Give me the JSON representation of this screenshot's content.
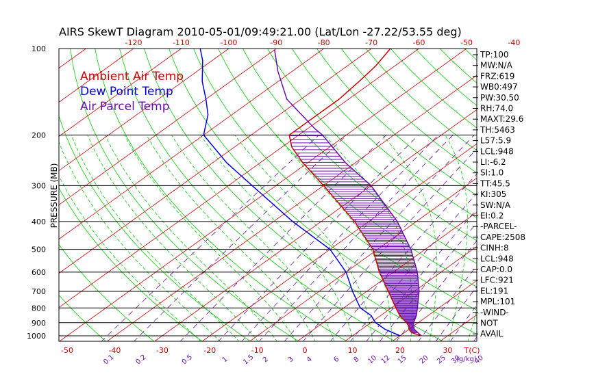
{
  "colors": {
    "temp": "#cc0000",
    "dew": "#0000dd",
    "parcel": "#6a0dad",
    "isotherm": "#cc0000",
    "dry_adiabat": "#00cc00",
    "moist_adiabat": "#00cc00",
    "mixing_ratio": "#6a0dad",
    "isobar": "#000000",
    "hatch": "#6a0dad"
  },
  "chart_data": {
    "type": "line",
    "title": "AIRS SkewT Diagram 2010-05-01/09:49:21.00 (Lat/Lon -27.22/53.55 deg)",
    "ylabel": "PRESSURE (MB)",
    "xlabel": "T(C)",
    "mixing_ratio_unit": "(g/kg)",
    "y_scale": "log",
    "ylim": [
      1050,
      100
    ],
    "xlim": [
      -55,
      45
    ],
    "pressure_ticks": [
      100,
      200,
      300,
      400,
      500,
      600,
      700,
      800,
      900,
      1000
    ],
    "top_temp_ticks": [
      -120,
      -110,
      -100,
      -90,
      -80,
      -70,
      -60,
      -50,
      -40
    ],
    "bottom_temp_ticks": [
      -50,
      -40,
      -30,
      -20,
      -10,
      0,
      10,
      20,
      30
    ],
    "mixing_ratio_ticks": [
      0.1,
      0.2,
      0.5,
      1,
      1.5,
      2,
      3,
      4,
      6,
      8,
      10,
      12,
      15,
      20,
      25,
      30,
      40
    ],
    "legend": [
      {
        "name": "Ambient Air Temp",
        "color": "#cc0000"
      },
      {
        "name": "Dew Point Temp",
        "color": "#0000dd"
      },
      {
        "name": "Air Parcel Temp",
        "color": "#6a0dad"
      }
    ],
    "series": [
      {
        "name": "Ambient Air Temp",
        "points": [
          [
            1000,
            24.5
          ],
          [
            975,
            21.5
          ],
          [
            950,
            20.0
          ],
          [
            925,
            19.0
          ],
          [
            900,
            17.5
          ],
          [
            850,
            14.0
          ],
          [
            800,
            11.0
          ],
          [
            700,
            4.5
          ],
          [
            600,
            -3.0
          ],
          [
            500,
            -11.0
          ],
          [
            400,
            -23.0
          ],
          [
            300,
            -40.0
          ],
          [
            250,
            -51.0
          ],
          [
            220,
            -58.0
          ],
          [
            200,
            -62.0
          ],
          [
            170,
            -62.0
          ],
          [
            150,
            -62.0
          ],
          [
            130,
            -63.0
          ],
          [
            115,
            -64.0
          ],
          [
            100,
            -66.0
          ]
        ]
      },
      {
        "name": "Dew Point Temp",
        "points": [
          [
            1000,
            20.0
          ],
          [
            950,
            15.0
          ],
          [
            900,
            11.0
          ],
          [
            850,
            8.0
          ],
          [
            800,
            3.5
          ],
          [
            700,
            -3.0
          ],
          [
            600,
            -10.0
          ],
          [
            500,
            -20.0
          ],
          [
            400,
            -36.0
          ],
          [
            300,
            -55.0
          ],
          [
            250,
            -67.0
          ],
          [
            200,
            -80.0
          ],
          [
            170,
            -85.0
          ],
          [
            150,
            -90.0
          ],
          [
            130,
            -96.0
          ],
          [
            110,
            -102.0
          ],
          [
            100,
            -106.0
          ]
        ]
      },
      {
        "name": "Air Parcel Temp",
        "points": [
          [
            1000,
            24.5
          ],
          [
            948,
            21.0
          ],
          [
            900,
            19.0
          ],
          [
            850,
            17.5
          ],
          [
            800,
            15.5
          ],
          [
            700,
            11.0
          ],
          [
            600,
            5.0
          ],
          [
            500,
            -3.0
          ],
          [
            400,
            -14.0
          ],
          [
            300,
            -30.0
          ],
          [
            250,
            -42.0
          ],
          [
            200,
            -55.0
          ],
          [
            190,
            -58.5
          ],
          [
            150,
            -73.0
          ],
          [
            120,
            -83.0
          ],
          [
            101,
            -90.0
          ]
        ]
      }
    ],
    "stats": [
      "TP:100",
      "MW:N/A",
      "FRZ:619",
      "WB0:497",
      "PW:30.50",
      "RH:74.0",
      "MAXT:29.6",
      "TH:5463",
      "L57:5.9",
      "LCL:948",
      "LI:-6.2",
      "SI:1.0",
      "TT:45.5",
      "KI:305",
      "SW:N/A",
      "EI:0.2",
      "-PARCEL-",
      "CAPE:2508",
      "CINH:8",
      "LCL:948",
      "CAP:0.0",
      "LFC:921",
      "EL:191",
      "MPL:101",
      "-WIND-",
      "NOT",
      "AVAIL"
    ],
    "grid": true,
    "legend_position": "top-left"
  }
}
